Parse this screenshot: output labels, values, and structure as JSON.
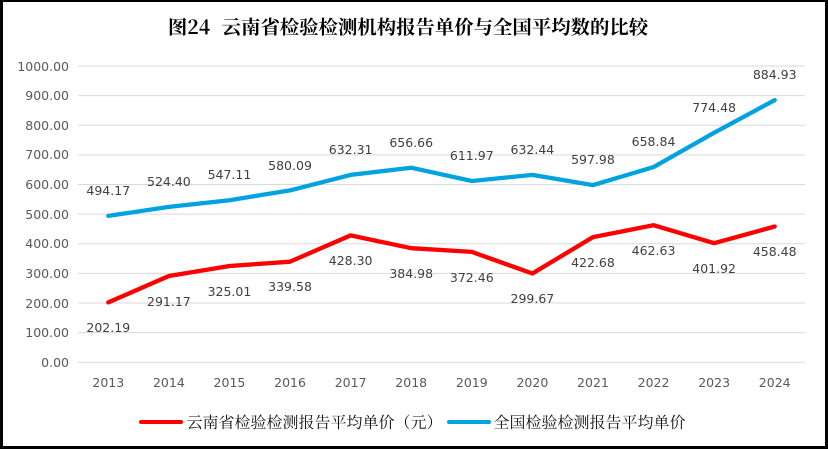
{
  "window": {
    "border_color": "#000000",
    "background": "#ffffff"
  },
  "chart_data": {
    "type": "line",
    "title": "图24 云南省检验检测机构报告单价与全国平均数的比较",
    "categories": [
      "2013",
      "2014",
      "2015",
      "2016",
      "2017",
      "2018",
      "2019",
      "2020",
      "2021",
      "2022",
      "2023",
      "2024"
    ],
    "series": [
      {
        "name": "云南省检验检测报告平均单价（元）",
        "color": "#FF0000",
        "values": [
          202.19,
          291.17,
          325.01,
          339.58,
          428.3,
          384.98,
          372.46,
          299.67,
          422.68,
          462.63,
          401.92,
          458.48
        ],
        "data_label_position": "below"
      },
      {
        "name": "全国检验检测报告平均单价",
        "color": "#00A3E0",
        "values": [
          494.17,
          524.4,
          547.11,
          580.09,
          632.31,
          656.66,
          611.97,
          632.44,
          597.98,
          658.84,
          774.48,
          884.93
        ],
        "data_label_position": "above"
      }
    ],
    "xlabel": "",
    "ylabel": "",
    "ylim": [
      0,
      1000
    ],
    "ytick_step": 100,
    "ytick_labels": [
      "0.00",
      "100.00",
      "200.00",
      "300.00",
      "400.00",
      "500.00",
      "600.00",
      "700.00",
      "800.00",
      "900.00",
      "1000.00"
    ],
    "grid": "horizontal",
    "gridline_color": "#D9D9D9",
    "axis_label_color": "#595959",
    "data_label_color": "#404040",
    "legend_position": "bottom"
  }
}
